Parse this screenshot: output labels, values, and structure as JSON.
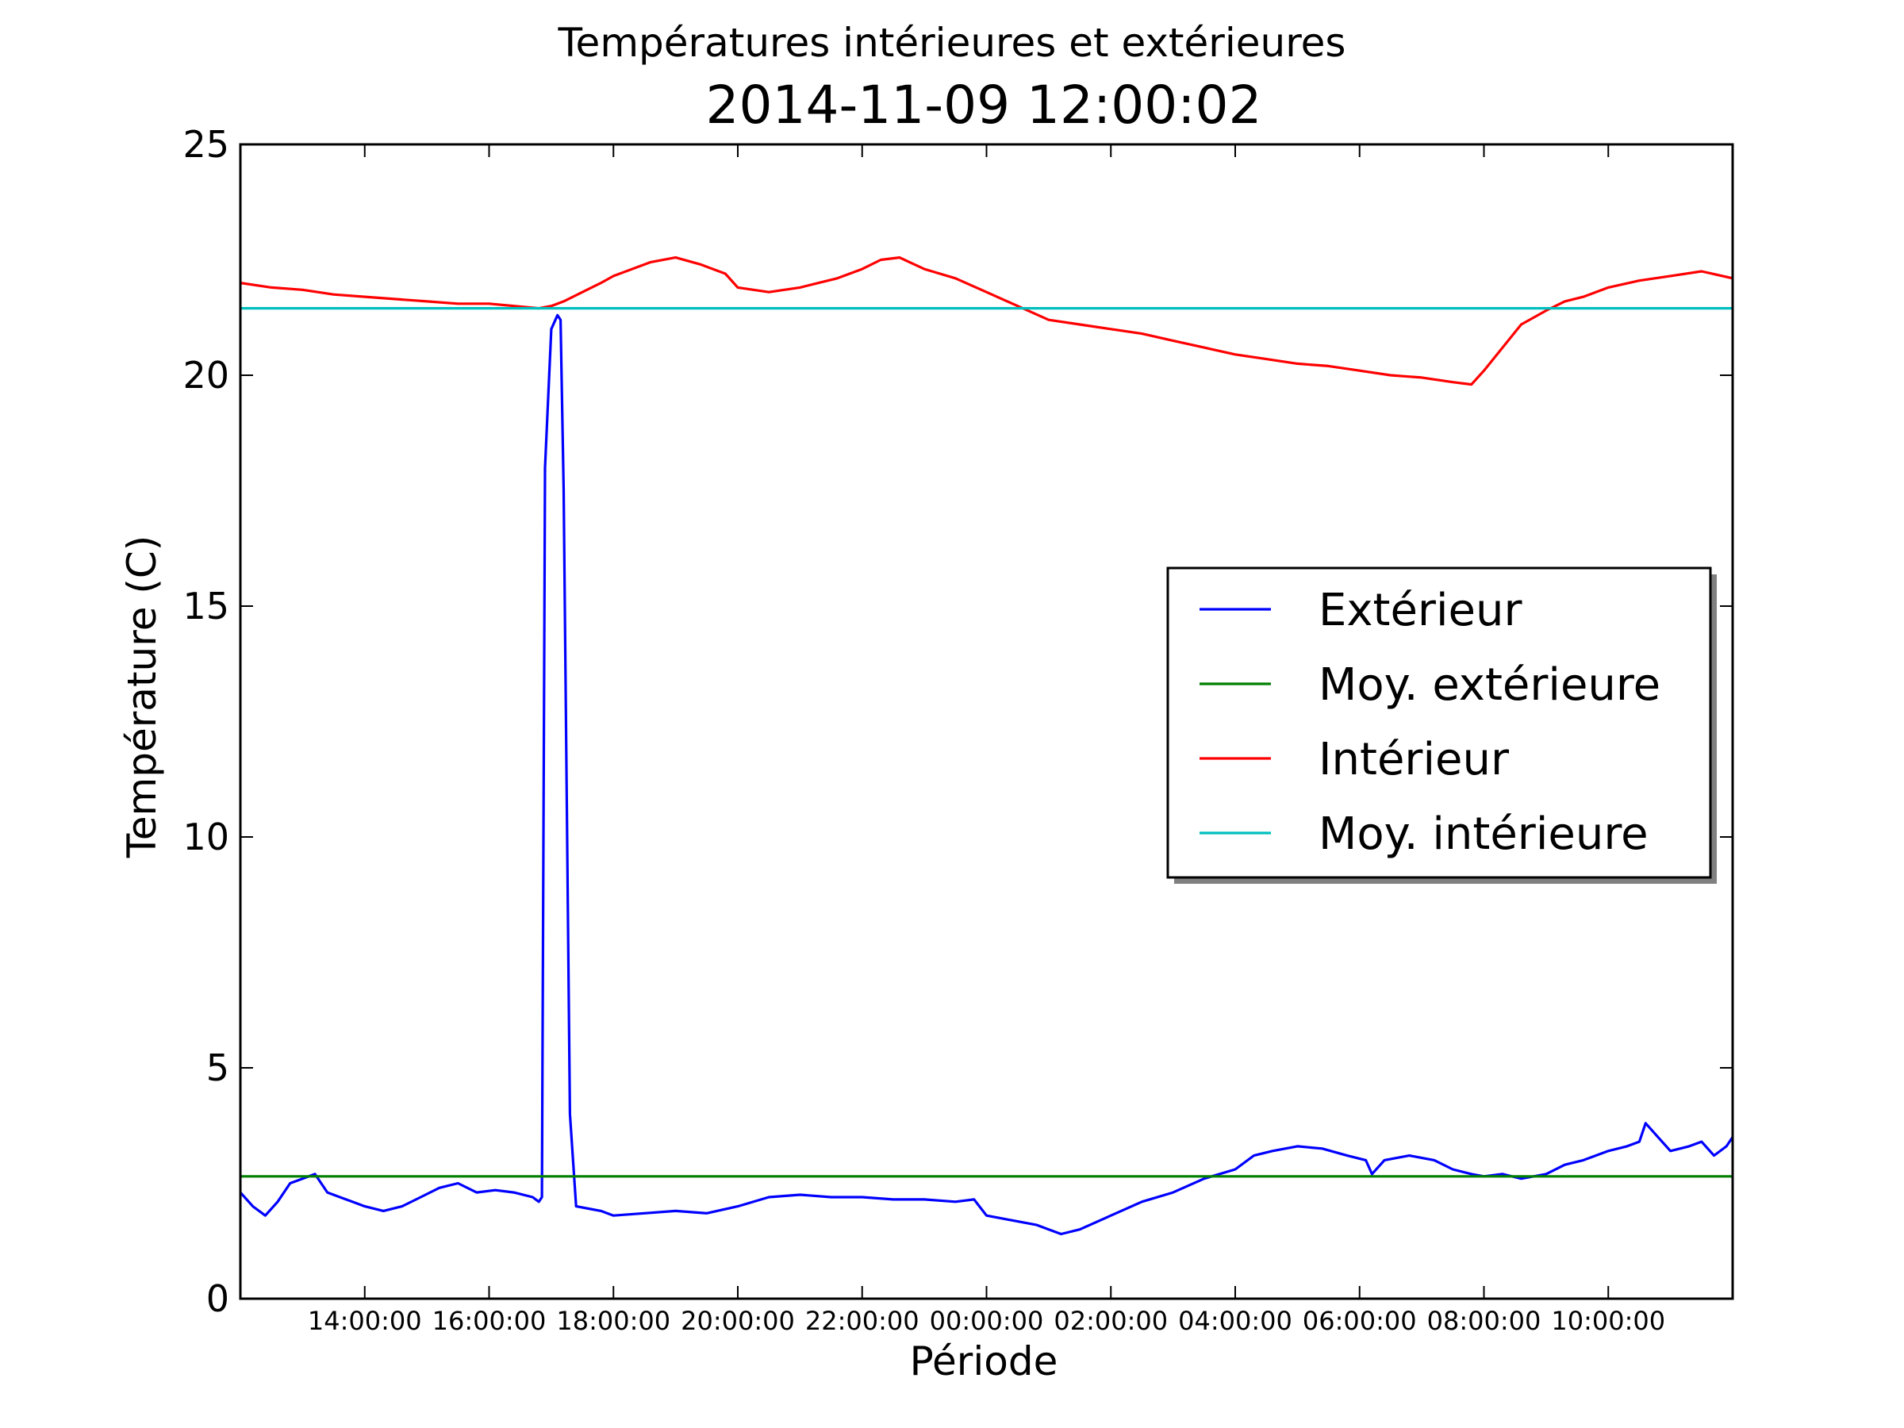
{
  "chart_data": {
    "type": "line",
    "suptitle": "Températures intérieures et extérieures",
    "title": "2014-11-09 12:00:02",
    "xlabel": "Période",
    "ylabel": "Température (C)",
    "xlim": [
      12.0,
      36.0
    ],
    "ylim": [
      0,
      25
    ],
    "yticks": [
      0,
      5,
      10,
      15,
      20,
      25
    ],
    "xticks": [
      {
        "x": 14,
        "label": "14:00:00"
      },
      {
        "x": 16,
        "label": "16:00:00"
      },
      {
        "x": 18,
        "label": "18:00:00"
      },
      {
        "x": 20,
        "label": "20:00:00"
      },
      {
        "x": 22,
        "label": "22:00:00"
      },
      {
        "x": 24,
        "label": "00:00:00"
      },
      {
        "x": 26,
        "label": "02:00:00"
      },
      {
        "x": 28,
        "label": "04:00:00"
      },
      {
        "x": 30,
        "label": "06:00:00"
      },
      {
        "x": 32,
        "label": "08:00:00"
      },
      {
        "x": 34,
        "label": "10:00:00"
      }
    ],
    "legend_position": "center-right",
    "series": [
      {
        "name": "Extérieur",
        "color": "#0000ff",
        "x": [
          12.0,
          12.2,
          12.4,
          12.6,
          12.8,
          13.0,
          13.2,
          13.4,
          13.6,
          13.8,
          14.0,
          14.3,
          14.6,
          14.9,
          15.2,
          15.5,
          15.8,
          16.1,
          16.4,
          16.7,
          16.8,
          16.85,
          16.9,
          17.0,
          17.1,
          17.15,
          17.2,
          17.3,
          17.4,
          17.6,
          17.8,
          18.0,
          18.5,
          19.0,
          19.5,
          20.0,
          20.5,
          21.0,
          21.5,
          22.0,
          22.5,
          23.0,
          23.5,
          23.8,
          24.0,
          24.4,
          24.8,
          25.0,
          25.2,
          25.5,
          26.0,
          26.5,
          27.0,
          27.5,
          28.0,
          28.3,
          28.6,
          29.0,
          29.4,
          29.8,
          30.1,
          30.2,
          30.4,
          30.8,
          31.2,
          31.5,
          31.8,
          32.0,
          32.3,
          32.6,
          32.8,
          33.0,
          33.3,
          33.6,
          34.0,
          34.3,
          34.5,
          34.6,
          34.8,
          35.0,
          35.3,
          35.5,
          35.7,
          35.9,
          36.0
        ],
        "values": [
          2.3,
          2.0,
          1.8,
          2.1,
          2.5,
          2.6,
          2.7,
          2.3,
          2.2,
          2.1,
          2.0,
          1.9,
          2.0,
          2.2,
          2.4,
          2.5,
          2.3,
          2.35,
          2.3,
          2.2,
          2.1,
          2.2,
          18.0,
          21.0,
          21.3,
          21.2,
          17.5,
          4.0,
          2.0,
          1.95,
          1.9,
          1.8,
          1.85,
          1.9,
          1.85,
          2.0,
          2.2,
          2.25,
          2.2,
          2.2,
          2.15,
          2.15,
          2.1,
          2.15,
          1.8,
          1.7,
          1.6,
          1.5,
          1.4,
          1.5,
          1.8,
          2.1,
          2.3,
          2.6,
          2.8,
          3.1,
          3.2,
          3.3,
          3.25,
          3.1,
          3.0,
          2.7,
          3.0,
          3.1,
          3.0,
          2.8,
          2.7,
          2.65,
          2.7,
          2.6,
          2.65,
          2.7,
          2.9,
          3.0,
          3.2,
          3.3,
          3.4,
          3.8,
          3.5,
          3.2,
          3.3,
          3.4,
          3.1,
          3.3,
          3.5
        ]
      },
      {
        "name": "Moy. extérieure",
        "color": "#007f00",
        "x": [
          12.0,
          36.0
        ],
        "values": [
          2.65,
          2.65
        ]
      },
      {
        "name": "Intérieur",
        "color": "#ff0000",
        "x": [
          12.0,
          12.5,
          13.0,
          13.5,
          14.0,
          14.5,
          15.0,
          15.5,
          16.0,
          16.4,
          16.8,
          17.0,
          17.2,
          17.5,
          17.8,
          18.0,
          18.3,
          18.6,
          19.0,
          19.4,
          19.8,
          20.0,
          20.5,
          21.0,
          21.3,
          21.6,
          22.0,
          22.3,
          22.6,
          23.0,
          23.5,
          24.0,
          24.5,
          25.0,
          25.5,
          26.0,
          26.5,
          27.0,
          27.5,
          28.0,
          28.5,
          29.0,
          29.5,
          30.0,
          30.5,
          31.0,
          31.5,
          31.8,
          32.0,
          32.3,
          32.6,
          33.0,
          33.3,
          33.6,
          34.0,
          34.5,
          35.0,
          35.5,
          36.0
        ],
        "values": [
          22.0,
          21.9,
          21.85,
          21.75,
          21.7,
          21.65,
          21.6,
          21.55,
          21.55,
          21.5,
          21.45,
          21.5,
          21.6,
          21.8,
          22.0,
          22.15,
          22.3,
          22.45,
          22.55,
          22.4,
          22.2,
          21.9,
          21.8,
          21.9,
          22.0,
          22.1,
          22.3,
          22.5,
          22.55,
          22.3,
          22.1,
          21.8,
          21.5,
          21.2,
          21.1,
          21.0,
          20.9,
          20.75,
          20.6,
          20.45,
          20.35,
          20.25,
          20.2,
          20.1,
          20.0,
          19.95,
          19.85,
          19.8,
          20.1,
          20.6,
          21.1,
          21.4,
          21.6,
          21.7,
          21.9,
          22.05,
          22.15,
          22.25,
          22.1
        ]
      },
      {
        "name": "Moy. intérieure",
        "color": "#00bfbf",
        "x": [
          12.0,
          36.0
        ],
        "values": [
          21.45,
          21.45
        ]
      }
    ]
  }
}
